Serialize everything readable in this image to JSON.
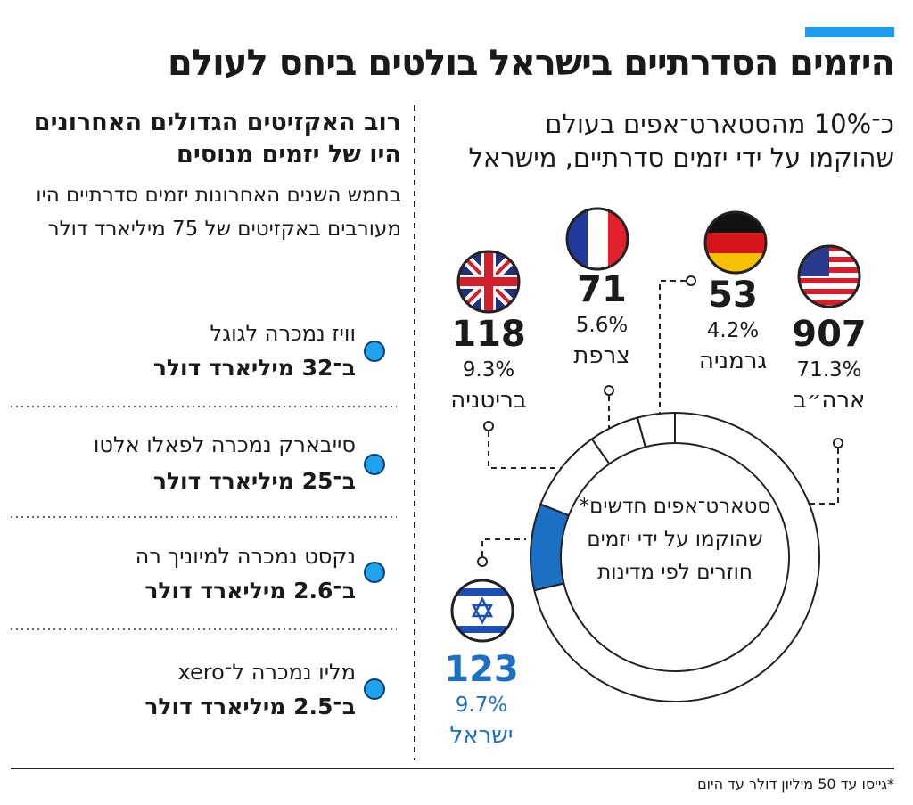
{
  "header": {
    "title": "היזמים הסדרתיים בישראל בולטים ביחס לעולם"
  },
  "left": {
    "heading": "רוב האקזיטים הגדולים האחרונים היו של יזמים מנוסים",
    "body": "בחמש השנים האחרונות יזמים סדרתיים היו מעורבים באקזיטים של 75 מיליארד דולר",
    "items": [
      {
        "company": "וויז נמכרה לגוגל",
        "amount": "ב־32 מיליארד דולר"
      },
      {
        "company": "סייבארק נמכרה לפאלו אלטו",
        "amount": "ב־25 מיליארד דולר"
      },
      {
        "company": "נקסט נמכרה למיוניך רה",
        "amount": "ב־2.6 מיליארד דולר"
      },
      {
        "company": "מליו נמכרה ל־xero",
        "amount": "ב־2.5 מיליארד דולר"
      }
    ]
  },
  "chart_data": {
    "type": "donut",
    "subtitle": "כ־10% מהסטארט־אפים בעולם שהוקמו על ידי יזמים סדרתיים, מישראל",
    "center_label": "סטארט־אפים חדשים* שהוקמו על ידי יזמים חוזרים לפי מדינות",
    "categories": [
      "ארה״ב",
      "ישראל",
      "בריטניה",
      "צרפת",
      "גרמניה"
    ],
    "values": [
      907,
      123,
      118,
      71,
      53
    ],
    "percent_labels": [
      "71.3%",
      "9.7%",
      "9.3%",
      "5.6%",
      "4.2%"
    ],
    "colors": [
      "#ffffff",
      "#1b6fc5",
      "#ffffff",
      "#ffffff",
      "#ffffff"
    ]
  },
  "footnote": "*גייסו עד 50 מיליון דולר עד היום"
}
